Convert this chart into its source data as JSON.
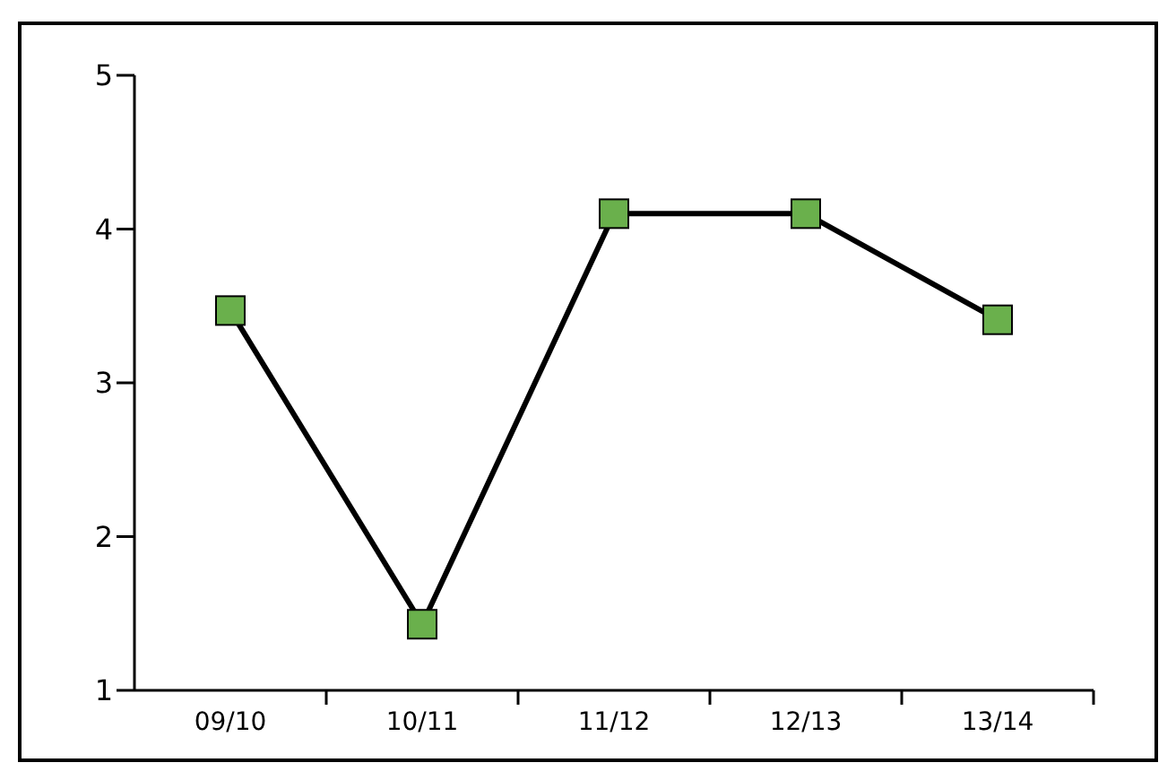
{
  "chart_data": {
    "type": "line",
    "categories": [
      "09/10",
      "10/11",
      "11/12",
      "12/13",
      "13/14"
    ],
    "series": [
      {
        "color": "#6ab04c",
        "values": [
          3.47,
          1.43,
          4.1,
          4.1,
          3.41
        ]
      }
    ],
    "ylim": [
      1,
      5
    ],
    "yticks": [
      1,
      2,
      3,
      4,
      5
    ],
    "grid": false,
    "legend": false,
    "marker": "square",
    "line_style": "solid"
  }
}
